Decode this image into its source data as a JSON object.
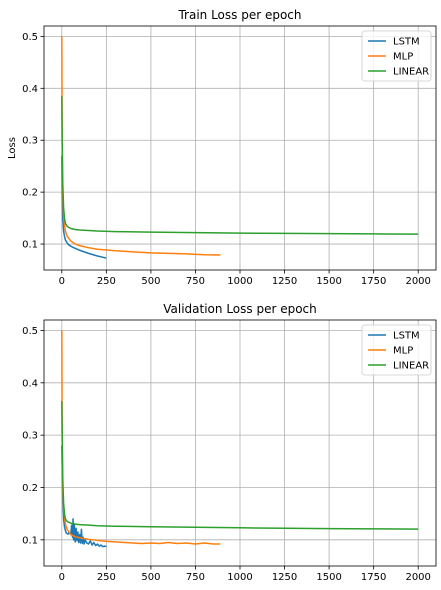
{
  "chart_data": [
    {
      "type": "line",
      "title": "Train Loss per epoch",
      "xlabel": "",
      "ylabel": "Loss",
      "xlim": [
        -100,
        2100
      ],
      "ylim": [
        0.05,
        0.52
      ],
      "xticks": [
        0,
        250,
        500,
        750,
        1000,
        1250,
        1500,
        1750,
        2000
      ],
      "yticks": [
        0.1,
        0.2,
        0.3,
        0.4,
        0.5
      ],
      "grid": true,
      "legend": "top-right",
      "series": [
        {
          "name": "LSTM",
          "color": "#1f77b4",
          "x": [
            0,
            2,
            5,
            10,
            15,
            20,
            30,
            40,
            60,
            80,
            100,
            150,
            200,
            250
          ],
          "y": [
            0.27,
            0.2,
            0.15,
            0.125,
            0.115,
            0.108,
            0.102,
            0.098,
            0.094,
            0.091,
            0.088,
            0.082,
            0.077,
            0.073
          ]
        },
        {
          "name": "MLP",
          "color": "#ff7f0e",
          "x": [
            0,
            2,
            5,
            10,
            20,
            30,
            50,
            75,
            100,
            150,
            200,
            300,
            400,
            500,
            600,
            700,
            800,
            890
          ],
          "y": [
            0.5,
            0.3,
            0.2,
            0.15,
            0.125,
            0.115,
            0.106,
            0.1,
            0.097,
            0.093,
            0.09,
            0.087,
            0.085,
            0.083,
            0.082,
            0.081,
            0.0795,
            0.079
          ]
        },
        {
          "name": "LINEAR",
          "color": "#2ca02c",
          "x": [
            0,
            2,
            5,
            10,
            15,
            20,
            30,
            50,
            75,
            100,
            150,
            200,
            300,
            500,
            750,
            1000,
            1250,
            1500,
            1750,
            2000
          ],
          "y": [
            0.385,
            0.3,
            0.22,
            0.17,
            0.15,
            0.14,
            0.134,
            0.13,
            0.128,
            0.127,
            0.126,
            0.125,
            0.124,
            0.123,
            0.122,
            0.121,
            0.1205,
            0.12,
            0.1195,
            0.119
          ]
        }
      ]
    },
    {
      "type": "line",
      "title": "Validation Loss per epoch",
      "xlabel": "",
      "ylabel": "",
      "xlim": [
        -100,
        2100
      ],
      "ylim": [
        0.05,
        0.52
      ],
      "xticks": [
        0,
        250,
        500,
        750,
        1000,
        1250,
        1500,
        1750,
        2000
      ],
      "yticks": [
        0.1,
        0.2,
        0.3,
        0.4,
        0.5
      ],
      "grid": true,
      "legend": "top-right",
      "series": [
        {
          "name": "LSTM",
          "color": "#1f77b4",
          "x": [
            0,
            3,
            6,
            10,
            15,
            20,
            25,
            30,
            35,
            40,
            45,
            50,
            55,
            60,
            63,
            66,
            70,
            75,
            80,
            85,
            90,
            95,
            100,
            105,
            110,
            115,
            120,
            125,
            130,
            140,
            150,
            160,
            170,
            180,
            190,
            200,
            210,
            220,
            230,
            240,
            250
          ],
          "y": [
            0.28,
            0.22,
            0.17,
            0.14,
            0.125,
            0.118,
            0.113,
            0.112,
            0.111,
            0.114,
            0.112,
            0.11,
            0.128,
            0.105,
            0.14,
            0.1,
            0.13,
            0.096,
            0.122,
            0.098,
            0.115,
            0.095,
            0.11,
            0.094,
            0.12,
            0.093,
            0.105,
            0.092,
            0.1,
            0.094,
            0.092,
            0.098,
            0.09,
            0.095,
            0.089,
            0.092,
            0.088,
            0.09,
            0.087,
            0.088,
            0.087
          ]
        },
        {
          "name": "MLP",
          "color": "#ff7f0e",
          "x": [
            0,
            2,
            5,
            10,
            20,
            30,
            50,
            75,
            100,
            150,
            200,
            250,
            300,
            350,
            400,
            450,
            500,
            550,
            600,
            650,
            700,
            750,
            800,
            850,
            890
          ],
          "y": [
            0.5,
            0.3,
            0.2,
            0.16,
            0.13,
            0.12,
            0.11,
            0.106,
            0.104,
            0.101,
            0.099,
            0.097,
            0.096,
            0.095,
            0.094,
            0.093,
            0.094,
            0.093,
            0.095,
            0.093,
            0.094,
            0.092,
            0.094,
            0.092,
            0.092
          ]
        },
        {
          "name": "LINEAR",
          "color": "#2ca02c",
          "x": [
            0,
            2,
            5,
            10,
            15,
            20,
            30,
            50,
            75,
            100,
            150,
            200,
            300,
            500,
            750,
            1000,
            1250,
            1500,
            1750,
            2000
          ],
          "y": [
            0.365,
            0.3,
            0.22,
            0.17,
            0.15,
            0.14,
            0.135,
            0.132,
            0.13,
            0.129,
            0.128,
            0.127,
            0.126,
            0.125,
            0.124,
            0.123,
            0.122,
            0.1215,
            0.121,
            0.1205
          ]
        }
      ]
    }
  ]
}
